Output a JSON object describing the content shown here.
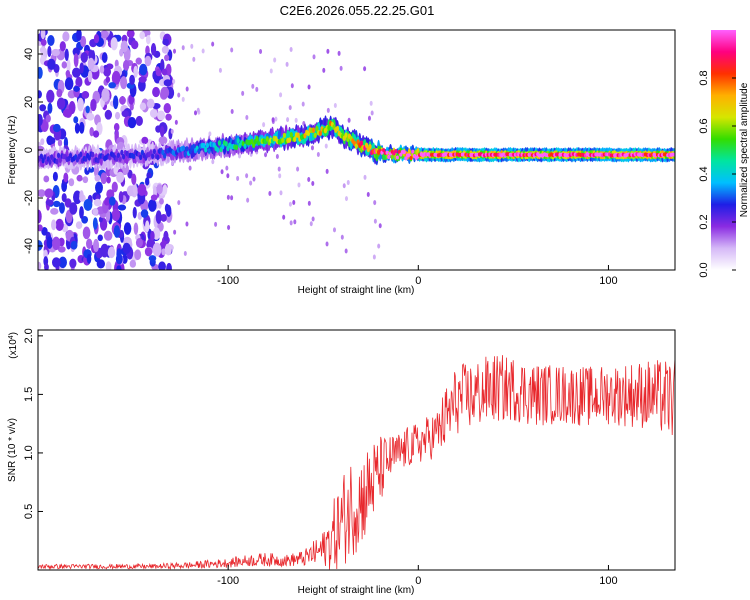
{
  "title": "C2E6.2026.055.22.25.G01",
  "chart_data": [
    {
      "type": "heatmap",
      "name": "spectrogram",
      "xlabel": "Height of straight line (km)",
      "ylabel": "Frequency (Hz)",
      "xlim": [
        -200,
        135
      ],
      "ylim": [
        -50,
        50
      ],
      "xticks": [
        -100,
        0,
        100
      ],
      "xtick_labels": [
        "-100",
        "0",
        "100"
      ],
      "yticks": [
        -40,
        -20,
        0,
        20,
        40
      ],
      "ytick_labels": [
        "-40",
        "-20",
        "0",
        "20",
        "40"
      ],
      "colorbar": {
        "label": "Normalized spectral amplitude",
        "range": [
          0,
          1
        ],
        "ticks": [
          0.0,
          0.2,
          0.4,
          0.6,
          0.8
        ],
        "tick_labels": [
          "0.0",
          "0.2",
          "0.4",
          "0.6",
          "0.8"
        ],
        "colors": [
          "#ffffff",
          "#d5b8f7",
          "#8a2be2",
          "#1e1ee6",
          "#00bfff",
          "#00e5a0",
          "#33dd00",
          "#d6e600",
          "#ffb000",
          "#ff3000",
          "#ff0080",
          "#ff60ff"
        ]
      },
      "ridge": {
        "x": [
          -200,
          -170,
          -140,
          -120,
          -100,
          -80,
          -60,
          -45,
          -38,
          -30,
          -22,
          -10,
          0,
          20,
          60,
          100,
          135
        ],
        "y": [
          -4,
          -3,
          -2,
          0,
          2,
          4,
          6,
          10,
          5,
          2,
          -1,
          -2,
          -2,
          -2,
          -2,
          -2,
          -2
        ],
        "peak_amplitude": [
          0.25,
          0.25,
          0.25,
          0.35,
          0.45,
          0.55,
          0.65,
          0.7,
          0.7,
          0.8,
          0.85,
          1.0,
          1.0,
          1.0,
          1.0,
          1.0,
          1.0
        ]
      },
      "noise_region": {
        "x_range": [
          -200,
          -130
        ],
        "y_range": [
          -50,
          50
        ],
        "amplitude": 0.2
      }
    },
    {
      "type": "line",
      "name": "snr",
      "xlabel": "Height of straight line (km)",
      "ylabel": "SNR (10 * v/v)",
      "yscale_note": "(x10^4)",
      "xlim": [
        -200,
        135
      ],
      "ylim": [
        0,
        2.05
      ],
      "xticks": [
        -100,
        0,
        100
      ],
      "xtick_labels": [
        "-100",
        "0",
        "100"
      ],
      "yticks": [
        0.5,
        1.0,
        1.5,
        2.0
      ],
      "ytick_labels": [
        "0.5",
        "1.0",
        "1.5",
        "2.0"
      ],
      "series": [
        {
          "name": "SNR",
          "color": "#e8282d",
          "x": [
            -200,
            -180,
            -160,
            -140,
            -120,
            -100,
            -90,
            -80,
            -70,
            -60,
            -50,
            -45,
            -40,
            -35,
            -30,
            -25,
            -20,
            -15,
            -10,
            -5,
            0,
            5,
            10,
            15,
            20,
            30,
            40,
            50,
            60,
            70,
            80,
            90,
            100,
            110,
            120,
            135
          ],
          "mean": [
            0.03,
            0.03,
            0.03,
            0.03,
            0.04,
            0.06,
            0.08,
            0.09,
            0.08,
            0.1,
            0.18,
            0.28,
            0.42,
            0.55,
            0.6,
            0.72,
            0.85,
            0.95,
            1.0,
            1.05,
            1.08,
            1.12,
            1.18,
            1.3,
            1.45,
            1.5,
            1.55,
            1.55,
            1.5,
            1.5,
            1.5,
            1.48,
            1.5,
            1.5,
            1.5,
            1.45
          ],
          "noise": [
            0.02,
            0.02,
            0.02,
            0.02,
            0.03,
            0.04,
            0.05,
            0.06,
            0.05,
            0.07,
            0.15,
            0.3,
            0.4,
            0.45,
            0.4,
            0.38,
            0.3,
            0.2,
            0.18,
            0.18,
            0.18,
            0.2,
            0.2,
            0.3,
            0.3,
            0.3,
            0.3,
            0.28,
            0.28,
            0.26,
            0.26,
            0.26,
            0.26,
            0.28,
            0.3,
            0.35
          ]
        }
      ]
    }
  ]
}
